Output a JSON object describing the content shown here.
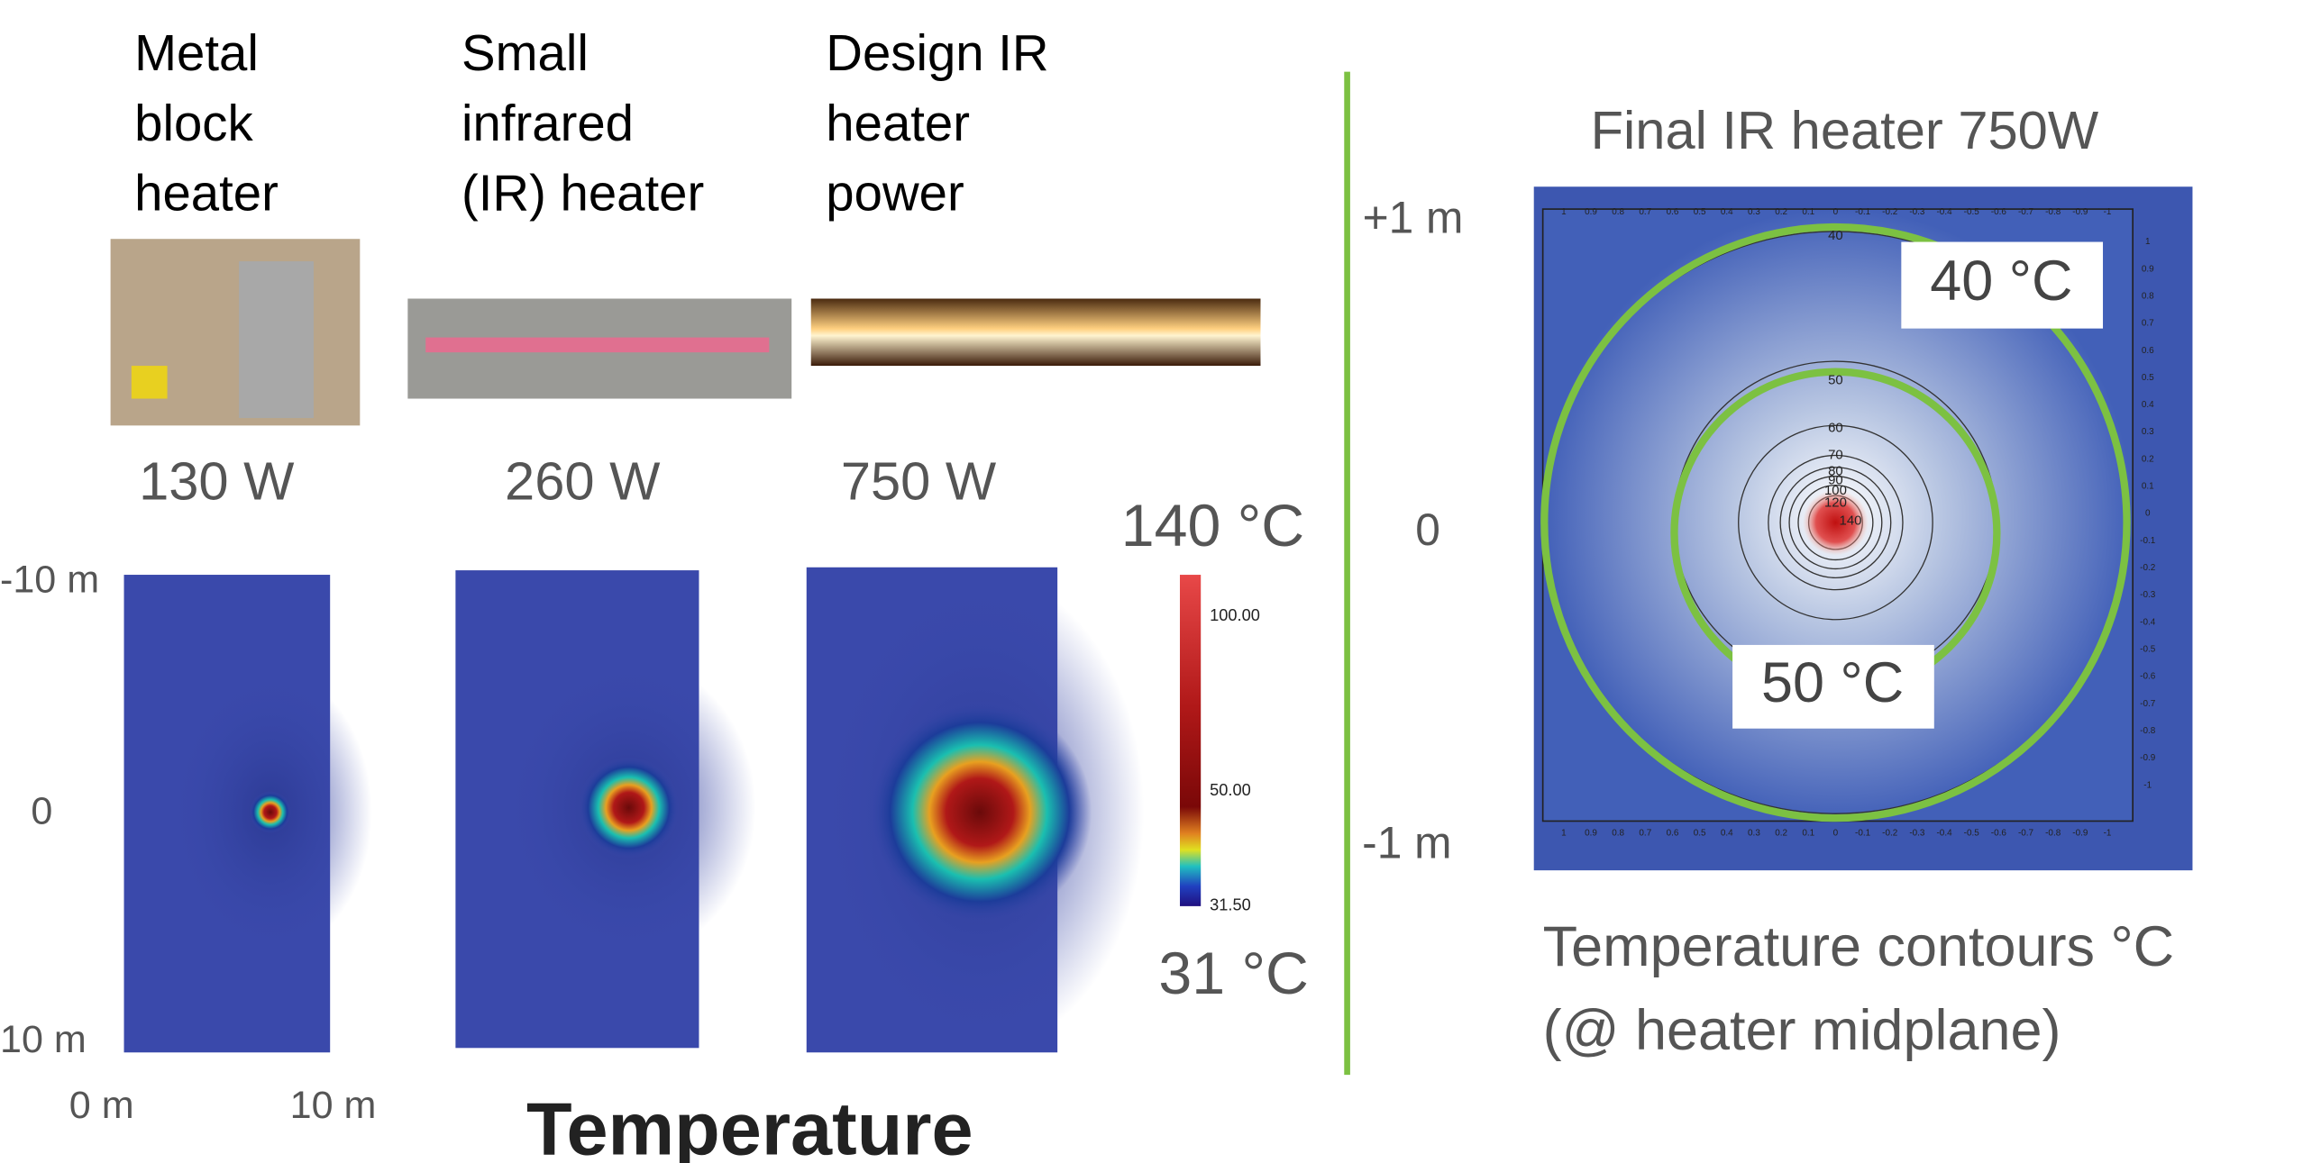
{
  "columns": [
    {
      "heading": [
        "Metal",
        "block",
        "heater"
      ],
      "power": "130 W"
    },
    {
      "heading": [
        "Small",
        "infrared",
        "(IR) heater"
      ],
      "power": "260 W"
    },
    {
      "heading": [
        "Design IR",
        "heater",
        "power"
      ],
      "power": "750 W"
    }
  ],
  "left_axis": {
    "top": "-10 m",
    "middle": "0",
    "bottom": "10 m",
    "x_start": "0 m",
    "x_end": "10 m"
  },
  "colorbar": {
    "max_label": "140 °C",
    "min_label": "31 °C",
    "ticks": [
      "100.00",
      "50.00",
      "31.50"
    ]
  },
  "caption": "Temperature",
  "right_axis": {
    "top": "+1 m",
    "middle": "0",
    "bottom": "-1 m"
  },
  "right_panel": {
    "title": "Final IR heater 750W",
    "contours": [
      "40",
      "50",
      "60",
      "70",
      "80",
      "90",
      "100",
      "120",
      "140"
    ],
    "callouts": [
      "40 °C",
      "50 °C"
    ],
    "x_ticks": [
      "1",
      "0.9",
      "0.8",
      "0.7",
      "0.6",
      "0.5",
      "0.4",
      "0.3",
      "0.2",
      "0.1",
      "0",
      "-0.1",
      "-0.2",
      "-0.3",
      "-0.4",
      "-0.5",
      "-0.6",
      "-0.7",
      "-0.8",
      "-0.9",
      "-1"
    ],
    "caption": [
      "Temperature contours °C",
      "(@ heater midplane)"
    ]
  }
}
